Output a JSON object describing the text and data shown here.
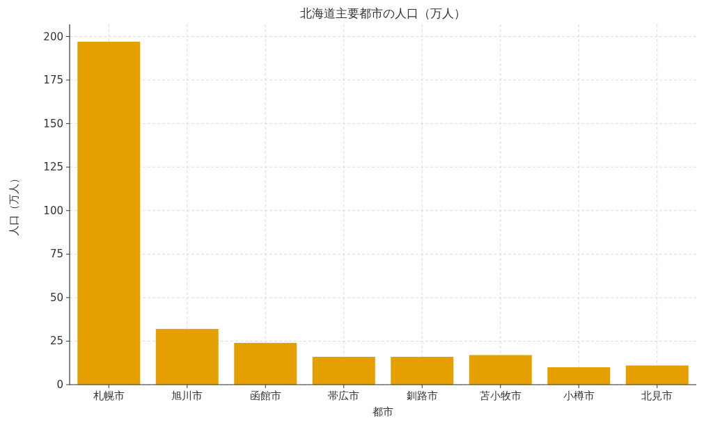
{
  "chart_data": {
    "type": "bar",
    "title": "北海道主要都市の人口（万人）",
    "xlabel": "都市",
    "ylabel": "人口（万人）",
    "categories": [
      "札幌市",
      "旭川市",
      "函館市",
      "帯広市",
      "釧路市",
      "苫小牧市",
      "小樽市",
      "北見市"
    ],
    "values": [
      197,
      32,
      24,
      16,
      16,
      17,
      10,
      11
    ],
    "color": "#e5a000",
    "ylim": [
      0,
      207
    ],
    "yticks": [
      0,
      25,
      50,
      75,
      100,
      125,
      150,
      175,
      200
    ],
    "grid": true
  }
}
